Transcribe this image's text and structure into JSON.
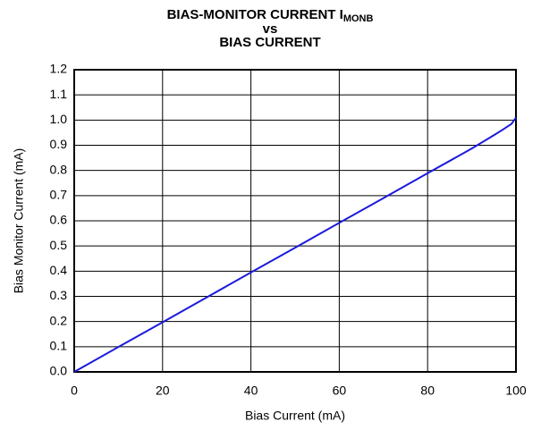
{
  "chart_data": {
    "type": "line",
    "title_lines": [
      "BIAS-MONITOR CURRENT I",
      "vs",
      "BIAS CURRENT"
    ],
    "title_subscript": "MONB",
    "xlabel": "Bias Current (mA)",
    "ylabel": "Bias Monitor Current (mA)",
    "x": [
      0,
      10,
      20,
      30,
      40,
      50,
      60,
      70,
      80,
      90,
      95,
      97,
      99,
      100
    ],
    "series": [
      {
        "name": "IMONB",
        "color": "#1a1adc",
        "values": [
          0,
          0.099,
          0.197,
          0.296,
          0.395,
          0.493,
          0.592,
          0.69,
          0.789,
          0.887,
          0.94,
          0.962,
          0.985,
          1.01
        ]
      }
    ],
    "xlim": [
      0,
      100
    ],
    "xticks": [
      0,
      20,
      40,
      60,
      80,
      100
    ],
    "ylim": [
      0,
      1.2
    ],
    "yticks": [
      {
        "value": 0,
        "label": "0.0"
      },
      0.1,
      0.2,
      0.3,
      0.4,
      0.5,
      0.6,
      0.7,
      0.8,
      0.9,
      {
        "value": 1,
        "label": "1.0"
      },
      1.1,
      1.2
    ],
    "grid": true
  }
}
